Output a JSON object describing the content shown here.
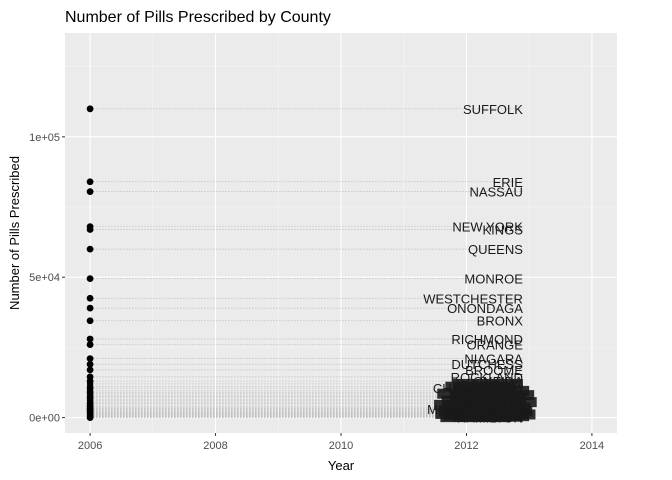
{
  "chart_data": {
    "type": "scatter",
    "title": "Number of Pills Prescribed by County",
    "xlabel": "Year",
    "ylabel": "Number of Pills Prescribed",
    "xlim": [
      2005.6,
      2014.4
    ],
    "ylim": [
      -5500,
      137000
    ],
    "x_ticks": [
      2006,
      2008,
      2010,
      2012,
      2014
    ],
    "x_tick_labels": [
      "2006",
      "2008",
      "2010",
      "2012",
      "2014"
    ],
    "y_ticks": [
      0,
      50000,
      100000
    ],
    "y_tick_labels": [
      "0e+00",
      "5e+04",
      "1e+05"
    ],
    "grid": true,
    "background": "#ebebeb",
    "gridline_color": "#ffffff",
    "point_color": "#000000",
    "segment_color": "#bdbdbd",
    "label_x": 2012.9,
    "labeled_points": [
      {
        "label": "SUFFOLK",
        "x": 2006,
        "y": 110000
      },
      {
        "label": "ERIE",
        "x": 2006,
        "y": 84000
      },
      {
        "label": "NASSAU",
        "x": 2006,
        "y": 80500
      },
      {
        "label": "NEW YORK",
        "x": 2006,
        "y": 68000
      },
      {
        "label": "KINGS",
        "x": 2006,
        "y": 67000
      },
      {
        "label": "QUEENS",
        "x": 2006,
        "y": 60000
      },
      {
        "label": "MONROE",
        "x": 2006,
        "y": 49500
      },
      {
        "label": "WESTCHESTER",
        "x": 2006,
        "y": 42500
      },
      {
        "label": "ONONDAGA",
        "x": 2006,
        "y": 39000
      },
      {
        "label": "BRONX",
        "x": 2006,
        "y": 34500
      },
      {
        "label": "RICHMOND",
        "x": 2006,
        "y": 28000
      },
      {
        "label": "ORANGE",
        "x": 2006,
        "y": 26000
      },
      {
        "label": "NIAGARA",
        "x": 2006,
        "y": 21000
      },
      {
        "label": "DUTCHESS",
        "x": 2006,
        "y": 19000
      },
      {
        "label": "BROOME",
        "x": 2006,
        "y": 17000
      },
      {
        "label": "ROCKLAND",
        "x": 2006,
        "y": 14500
      },
      {
        "label": "ONEIDA",
        "x": 2006,
        "y": 13000
      },
      {
        "label": "CHAUTAUQUA",
        "x": 2006,
        "y": 10500
      },
      {
        "label": "ALBANY",
        "x": 2006,
        "y": 9000
      },
      {
        "label": "SARATOGA",
        "x": 2006,
        "y": 7000
      },
      {
        "label": "ULSTER",
        "x": 2006,
        "y": 5000
      },
      {
        "label": "STEUBEN",
        "x": 2006,
        "y": 4000
      },
      {
        "label": "MONTGOMERY",
        "x": 2006,
        "y": 3000
      },
      {
        "label": "MADISON",
        "x": 2006,
        "y": 2000
      },
      {
        "label": "HAMILTON",
        "x": 2006,
        "y": 0
      }
    ],
    "small_points_y": [
      12000,
      11000,
      9500,
      8500,
      8000,
      7500,
      6500,
      6000,
      5500,
      4500,
      3500,
      3200,
      2800,
      2500,
      2200,
      1800,
      1500,
      1300,
      1100,
      900,
      700,
      500,
      300,
      150
    ],
    "small_label_x_offsets": [
      0,
      -0.12,
      0.1,
      -0.25,
      0.18,
      -0.05,
      0.05,
      -0.18,
      0.22,
      -0.3,
      0.12,
      -0.08,
      0.02,
      -0.22,
      0.15,
      -0.1,
      0.08,
      -0.28,
      0.2,
      -0.02,
      -0.15,
      0.1,
      0,
      -0.2
    ]
  }
}
